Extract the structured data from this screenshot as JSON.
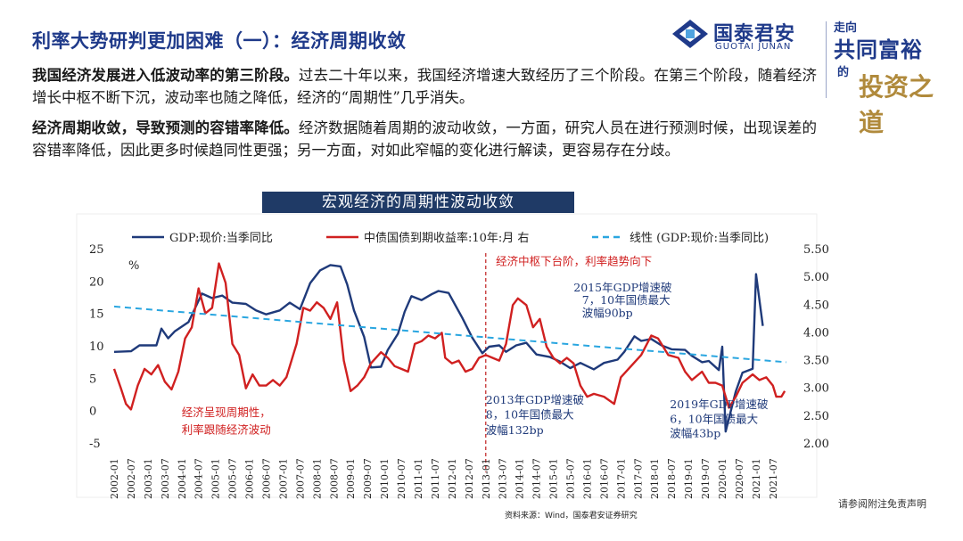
{
  "header": {
    "title": "利率大势研判更加困难（一）：经济周期收敛",
    "logo_cn": "国泰君安",
    "logo_en": "GUOTAI JUNAN",
    "slogan_l1": "走向",
    "slogan_l2": "共同富裕",
    "slogan_l3": "的",
    "slogan_l4": "投资之道"
  },
  "paragraphs": [
    {
      "lead": "我国经济发展进入低波动率的第三阶段。",
      "text": "过去二十年以来，我国经济增速大致经历了三个阶段。在第三个阶段，随着经济增长中枢不断下沉，波动率也随之降低，经济的“周期性”几乎消失。"
    },
    {
      "lead": "经济周期收敛，导致预测的容错率降低。",
      "text": "经济数据随着周期的波动收敛，一方面，研究人员在进行预测时候，出现误差的容错率降低，因此更多时候趋同性更强；另一方面，对如此窄幅的变化进行解读，更容易存在分歧。"
    }
  ],
  "chart_title": "宏观经济的周期性波动收敛",
  "footer": {
    "source": "资料来源：Wind，国泰君安证券研究",
    "disclaimer": "请参阅附注免责声明"
  },
  "chart_data": {
    "type": "line",
    "colors": {
      "gdp": "#1f3a7a",
      "bond": "#d02020",
      "trend": "#2aa6e0",
      "divider": "#c02020"
    },
    "x_tick_labels": [
      "2002-01",
      "2002-07",
      "2003-01",
      "2003-07",
      "2004-01",
      "2004-07",
      "2005-01",
      "2005-07",
      "2006-01",
      "2006-07",
      "2007-01",
      "2007-07",
      "2008-01",
      "2008-07",
      "2009-01",
      "2009-07",
      "2010-01",
      "2010-07",
      "2011-01",
      "2011-07",
      "2012-01",
      "2012-07",
      "2013-01",
      "2013-07",
      "2014-01",
      "2014-07",
      "2015-01",
      "2015-07",
      "2016-01",
      "2016-07",
      "2017-01",
      "2017-07",
      "2018-01",
      "2018-07",
      "2019-01",
      "2019-07",
      "2020-01",
      "2020-07",
      "2021-01",
      "2021-07"
    ],
    "left_axis": {
      "range": [
        -5,
        25
      ],
      "ticks": [
        "25",
        "20",
        "15",
        "10",
        "5",
        "0",
        "-5"
      ],
      "unit": "%"
    },
    "right_axis": {
      "range": [
        2.0,
        5.5
      ],
      "ticks": [
        "5.50",
        "5.00",
        "4.50",
        "4.00",
        "3.50",
        "3.00",
        "2.50",
        "2.00"
      ]
    },
    "series": [
      {
        "name": "GDP:现价:当季同比",
        "axis": "left",
        "key": "gdp",
        "points": [
          [
            2002.0,
            9.2
          ],
          [
            2002.5,
            9.3
          ],
          [
            2002.75,
            10.2
          ],
          [
            2003.25,
            10.2
          ],
          [
            2003.4,
            12.8
          ],
          [
            2003.6,
            11.3
          ],
          [
            2003.8,
            12.4
          ],
          [
            2004.2,
            13.8
          ],
          [
            2004.6,
            18.2
          ],
          [
            2004.9,
            17.5
          ],
          [
            2005.2,
            17.9
          ],
          [
            2005.5,
            16.8
          ],
          [
            2005.9,
            16.6
          ],
          [
            2006.2,
            15.6
          ],
          [
            2006.5,
            15.0
          ],
          [
            2006.9,
            15.6
          ],
          [
            2007.2,
            16.8
          ],
          [
            2007.5,
            15.8
          ],
          [
            2007.8,
            19.8
          ],
          [
            2008.1,
            21.8
          ],
          [
            2008.4,
            22.6
          ],
          [
            2008.7,
            22.4
          ],
          [
            2008.9,
            19.6
          ],
          [
            2009.1,
            15.6
          ],
          [
            2009.4,
            11.5
          ],
          [
            2009.6,
            6.8
          ],
          [
            2009.9,
            6.9
          ],
          [
            2010.1,
            9.5
          ],
          [
            2010.4,
            12.0
          ],
          [
            2010.6,
            15.4
          ],
          [
            2010.8,
            17.8
          ],
          [
            2011.1,
            17.2
          ],
          [
            2011.4,
            18.1
          ],
          [
            2011.6,
            18.6
          ],
          [
            2011.9,
            18.3
          ],
          [
            2012.3,
            14.5
          ],
          [
            2012.6,
            11.4
          ],
          [
            2012.9,
            9.0
          ],
          [
            2013.1,
            10.0
          ],
          [
            2013.4,
            10.2
          ],
          [
            2013.6,
            9.2
          ],
          [
            2013.9,
            10.2
          ],
          [
            2014.2,
            10.6
          ],
          [
            2014.5,
            8.8
          ],
          [
            2014.9,
            8.4
          ],
          [
            2015.2,
            7.7
          ],
          [
            2015.5,
            6.7
          ],
          [
            2015.8,
            7.5
          ],
          [
            2016.2,
            6.5
          ],
          [
            2016.5,
            7.5
          ],
          [
            2016.9,
            8.0
          ],
          [
            2017.1,
            9.2
          ],
          [
            2017.4,
            11.6
          ],
          [
            2017.6,
            10.9
          ],
          [
            2017.9,
            11.2
          ],
          [
            2018.2,
            10.2
          ],
          [
            2018.5,
            9.6
          ],
          [
            2018.9,
            9.5
          ],
          [
            2019.1,
            8.6
          ],
          [
            2019.4,
            7.6
          ],
          [
            2019.6,
            7.8
          ],
          [
            2019.9,
            6.4
          ],
          [
            2020.0,
            10.0
          ],
          [
            2020.1,
            -3.1
          ],
          [
            2020.4,
            3.1
          ],
          [
            2020.6,
            6.0
          ],
          [
            2020.9,
            6.6
          ],
          [
            2021.0,
            21.2
          ],
          [
            2021.2,
            13.2
          ]
        ]
      },
      {
        "name": "中债国债到期收益率:10年:月 右",
        "axis": "right",
        "key": "bond",
        "points": [
          [
            2002.0,
            3.35
          ],
          [
            2002.2,
            3.0
          ],
          [
            2002.35,
            2.72
          ],
          [
            2002.5,
            2.62
          ],
          [
            2002.7,
            3.05
          ],
          [
            2002.9,
            3.35
          ],
          [
            2003.1,
            3.25
          ],
          [
            2003.3,
            3.42
          ],
          [
            2003.5,
            3.12
          ],
          [
            2003.7,
            2.98
          ],
          [
            2003.9,
            3.3
          ],
          [
            2004.1,
            3.9
          ],
          [
            2004.3,
            4.1
          ],
          [
            2004.5,
            4.8
          ],
          [
            2004.7,
            4.35
          ],
          [
            2004.9,
            4.45
          ],
          [
            2005.1,
            5.25
          ],
          [
            2005.3,
            4.9
          ],
          [
            2005.5,
            3.8
          ],
          [
            2005.7,
            3.6
          ],
          [
            2005.9,
            3.0
          ],
          [
            2006.1,
            3.25
          ],
          [
            2006.3,
            3.05
          ],
          [
            2006.5,
            3.05
          ],
          [
            2006.7,
            3.15
          ],
          [
            2006.9,
            3.05
          ],
          [
            2007.1,
            3.2
          ],
          [
            2007.4,
            3.8
          ],
          [
            2007.6,
            4.45
          ],
          [
            2007.8,
            4.4
          ],
          [
            2008.0,
            4.55
          ],
          [
            2008.2,
            4.45
          ],
          [
            2008.4,
            4.25
          ],
          [
            2008.6,
            4.55
          ],
          [
            2008.8,
            3.5
          ],
          [
            2009.0,
            2.95
          ],
          [
            2009.2,
            3.05
          ],
          [
            2009.4,
            3.2
          ],
          [
            2009.6,
            3.45
          ],
          [
            2009.9,
            3.65
          ],
          [
            2010.1,
            3.55
          ],
          [
            2010.3,
            3.4
          ],
          [
            2010.5,
            3.35
          ],
          [
            2010.7,
            3.3
          ],
          [
            2010.9,
            3.8
          ],
          [
            2011.1,
            3.85
          ],
          [
            2011.3,
            3.95
          ],
          [
            2011.5,
            3.9
          ],
          [
            2011.7,
            4.0
          ],
          [
            2011.8,
            3.55
          ],
          [
            2012.0,
            3.45
          ],
          [
            2012.2,
            3.5
          ],
          [
            2012.4,
            3.3
          ],
          [
            2012.6,
            3.35
          ],
          [
            2012.8,
            3.55
          ],
          [
            2013.0,
            3.6
          ],
          [
            2013.2,
            3.55
          ],
          [
            2013.4,
            3.5
          ],
          [
            2013.6,
            3.8
          ],
          [
            2013.8,
            4.5
          ],
          [
            2013.95,
            4.62
          ],
          [
            2014.2,
            4.5
          ],
          [
            2014.4,
            4.1
          ],
          [
            2014.6,
            4.25
          ],
          [
            2014.8,
            3.75
          ],
          [
            2015.0,
            3.55
          ],
          [
            2015.2,
            3.45
          ],
          [
            2015.4,
            3.55
          ],
          [
            2015.6,
            3.45
          ],
          [
            2015.8,
            3.05
          ],
          [
            2016.0,
            2.85
          ],
          [
            2016.2,
            2.9
          ],
          [
            2016.5,
            2.85
          ],
          [
            2016.8,
            2.72
          ],
          [
            2017.0,
            3.2
          ],
          [
            2017.3,
            3.4
          ],
          [
            2017.6,
            3.6
          ],
          [
            2017.9,
            3.95
          ],
          [
            2018.1,
            3.9
          ],
          [
            2018.4,
            3.6
          ],
          [
            2018.7,
            3.55
          ],
          [
            2018.9,
            3.3
          ],
          [
            2019.1,
            3.15
          ],
          [
            2019.4,
            3.3
          ],
          [
            2019.6,
            3.1
          ],
          [
            2019.8,
            3.1
          ],
          [
            2020.0,
            3.05
          ],
          [
            2020.2,
            2.65
          ],
          [
            2020.4,
            2.85
          ],
          [
            2020.6,
            3.1
          ],
          [
            2020.9,
            3.25
          ],
          [
            2021.1,
            3.15
          ],
          [
            2021.3,
            3.2
          ],
          [
            2021.5,
            3.05
          ],
          [
            2021.6,
            2.85
          ],
          [
            2021.75,
            2.85
          ],
          [
            2021.85,
            2.95
          ]
        ]
      },
      {
        "name": "线性 (GDP:现价:当季同比)",
        "axis": "left",
        "key": "trend",
        "style": "dashed",
        "points": [
          [
            2002.0,
            16.2
          ],
          [
            2021.9,
            7.6
          ]
        ]
      }
    ],
    "divider_year": 2013.0,
    "annotations": [
      {
        "text": "经济中枢下台阶，利率趋势向下",
        "color": "#d02020",
        "year": 2013.3,
        "val": 22.6,
        "anchor": "start"
      },
      {
        "text": "2015年GDP增速破",
        "color": "#1f3a7a",
        "year": 2015.6,
        "val": 18.5,
        "anchor": "start"
      },
      {
        "text": "7，10年国债最大",
        "color": "#1f3a7a",
        "year": 2015.85,
        "val": 16.6,
        "anchor": "start"
      },
      {
        "text": "波幅90bp",
        "color": "#1f3a7a",
        "year": 2015.85,
        "val": 14.6,
        "anchor": "start"
      },
      {
        "text": "2013年GDP增速破",
        "color": "#1f3a7a",
        "year": 2013.0,
        "val": 1.2,
        "anchor": "start"
      },
      {
        "text": "8，10年国债最大",
        "color": "#1f3a7a",
        "year": 2013.0,
        "val": -1.1,
        "anchor": "start"
      },
      {
        "text": "波幅132bp",
        "color": "#1f3a7a",
        "year": 2013.0,
        "val": -3.5,
        "anchor": "start"
      },
      {
        "text": "2019年GDP增速破",
        "color": "#1f3a7a",
        "year": 2018.45,
        "val": 0.5,
        "anchor": "start"
      },
      {
        "text": "6，10年国债最大",
        "color": "#1f3a7a",
        "year": 2018.45,
        "val": -1.8,
        "anchor": "start"
      },
      {
        "text": "波幅43bp",
        "color": "#1f3a7a",
        "year": 2018.45,
        "val": -4.0,
        "anchor": "start"
      },
      {
        "text": "经济呈现周期性，",
        "color": "#d02020",
        "year": 2004.0,
        "val": -0.7,
        "anchor": "start"
      },
      {
        "text": "利率跟随经济波动",
        "color": "#d02020",
        "year": 2004.0,
        "val": -3.4,
        "anchor": "start"
      }
    ]
  }
}
